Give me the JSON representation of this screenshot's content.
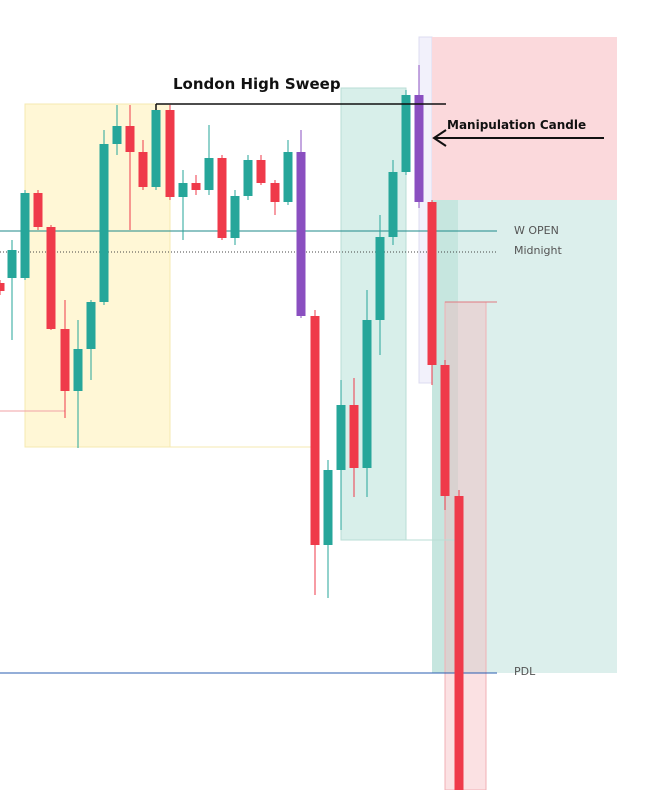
{
  "annotations": {
    "sweep": "London High Sweep",
    "manipulation": "Manipulation Candle"
  },
  "levels": {
    "w_open": "W OPEN",
    "midnight": "Midnight",
    "pdl": "PDL"
  }
}
